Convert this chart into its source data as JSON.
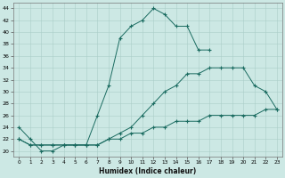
{
  "xlabel": "Humidex (Indice chaleur)",
  "xlim": [
    -0.5,
    23.5
  ],
  "ylim": [
    19,
    45
  ],
  "xticks": [
    0,
    1,
    2,
    3,
    4,
    5,
    6,
    7,
    8,
    9,
    10,
    11,
    12,
    13,
    14,
    15,
    16,
    17,
    18,
    19,
    20,
    21,
    22,
    23
  ],
  "yticks": [
    20,
    22,
    24,
    26,
    28,
    30,
    32,
    34,
    36,
    38,
    40,
    42,
    44
  ],
  "bg_color": "#cce8e4",
  "line_color": "#1a6b60",
  "c1x": [
    0,
    1,
    2,
    3,
    4,
    5,
    6,
    7,
    8,
    9,
    10,
    11,
    12,
    13,
    14,
    15,
    16,
    17
  ],
  "c1y": [
    24,
    22,
    20,
    20,
    21,
    21,
    21,
    26,
    31,
    39,
    41,
    42,
    44,
    43,
    41,
    41,
    37,
    37
  ],
  "c2x": [
    0,
    1,
    2,
    3,
    4,
    5,
    6,
    7,
    8,
    9,
    10,
    11,
    12,
    13,
    14,
    15,
    16,
    17,
    18,
    19,
    20,
    21,
    22,
    23
  ],
  "c2y": [
    22,
    21,
    21,
    21,
    21,
    21,
    21,
    21,
    22,
    23,
    24,
    26,
    28,
    30,
    31,
    33,
    33,
    34,
    34,
    34,
    34,
    31,
    30,
    27
  ],
  "c3x": [
    0,
    1,
    2,
    3,
    4,
    5,
    6,
    7,
    8,
    9,
    10,
    11,
    12,
    13,
    14,
    15,
    16,
    17,
    18,
    19,
    20,
    21,
    22,
    23
  ],
  "c3y": [
    22,
    21,
    21,
    21,
    21,
    21,
    21,
    21,
    22,
    22,
    23,
    23,
    24,
    24,
    25,
    25,
    25,
    26,
    26,
    26,
    26,
    26,
    27,
    27
  ],
  "figsize": [
    3.2,
    2.0
  ],
  "dpi": 100
}
